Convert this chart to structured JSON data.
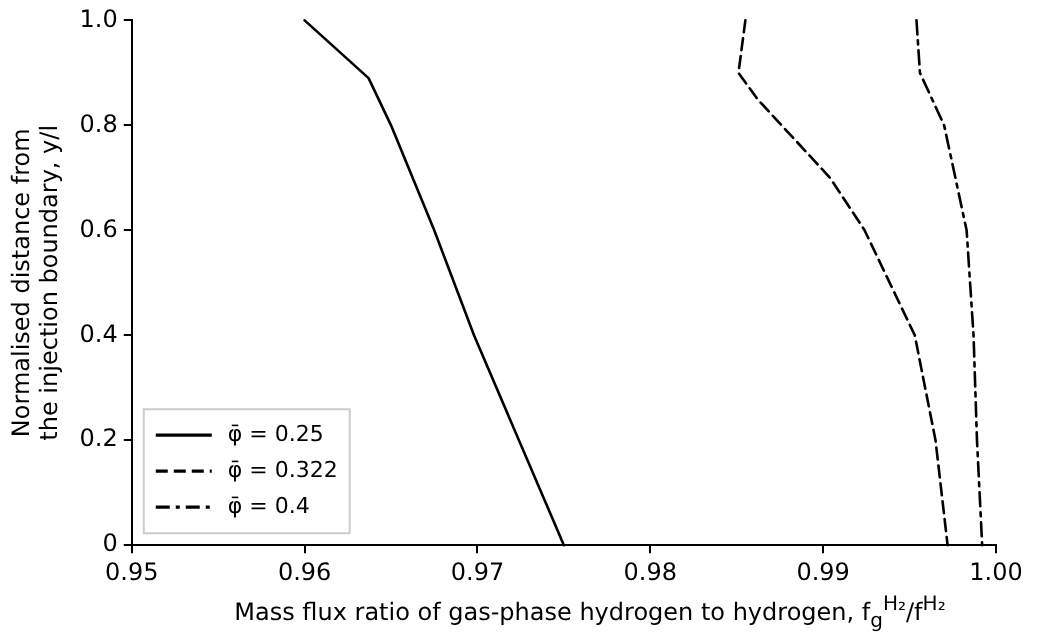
{
  "chart_data": {
    "type": "line",
    "xlabel": "Mass flux ratio of gas-phase hydrogen to hydrogen, f$_{g}$$^{H₂}$/f$^{H₂}$",
    "ylabel": "Normalised distance from the injection boundary, y/l",
    "xlim": [
      0.95,
      1.0
    ],
    "xticks": [
      0.95,
      0.96,
      0.97,
      0.98,
      0.99,
      {
        "value": 1.0,
        "label": "1.00"
      }
    ],
    "ylim": [
      0,
      1
    ],
    "yticks": [
      0,
      0.2,
      0.4,
      0.6,
      0.8,
      {
        "value": 1,
        "label": "1.0"
      }
    ],
    "grid": false,
    "legend": "bottom left",
    "marker": "none",
    "series": [
      {
        "name": "φ̄ = 0.25",
        "color": "#000000",
        "line_style": "solid",
        "x": [
          0.96,
          0.9637,
          0.965,
          0.9675,
          0.9698,
          0.975
        ],
        "values": [
          1.0,
          0.89,
          0.8,
          0.6,
          0.4,
          0
        ]
      },
      {
        "name": "φ̄ = 0.322",
        "color": "#000000",
        "line_style": "dashed",
        "x": [
          0.9855,
          0.9851,
          0.9862,
          0.9876,
          0.9904,
          0.9924,
          0.9953,
          0.9965,
          0.9972
        ],
        "values": [
          1.0,
          0.9,
          0.85,
          0.8,
          0.7,
          0.6,
          0.4,
          0.2,
          0
        ]
      },
      {
        "name": "φ̄ = 0.4",
        "color": "#000000",
        "line_style": "dashdot",
        "x": [
          0.9954,
          0.9956,
          0.997,
          0.9983,
          0.9987,
          0.9989,
          0.9992
        ],
        "values": [
          1.0,
          0.9,
          0.8,
          0.6,
          0.4,
          0.2,
          0
        ]
      }
    ]
  }
}
